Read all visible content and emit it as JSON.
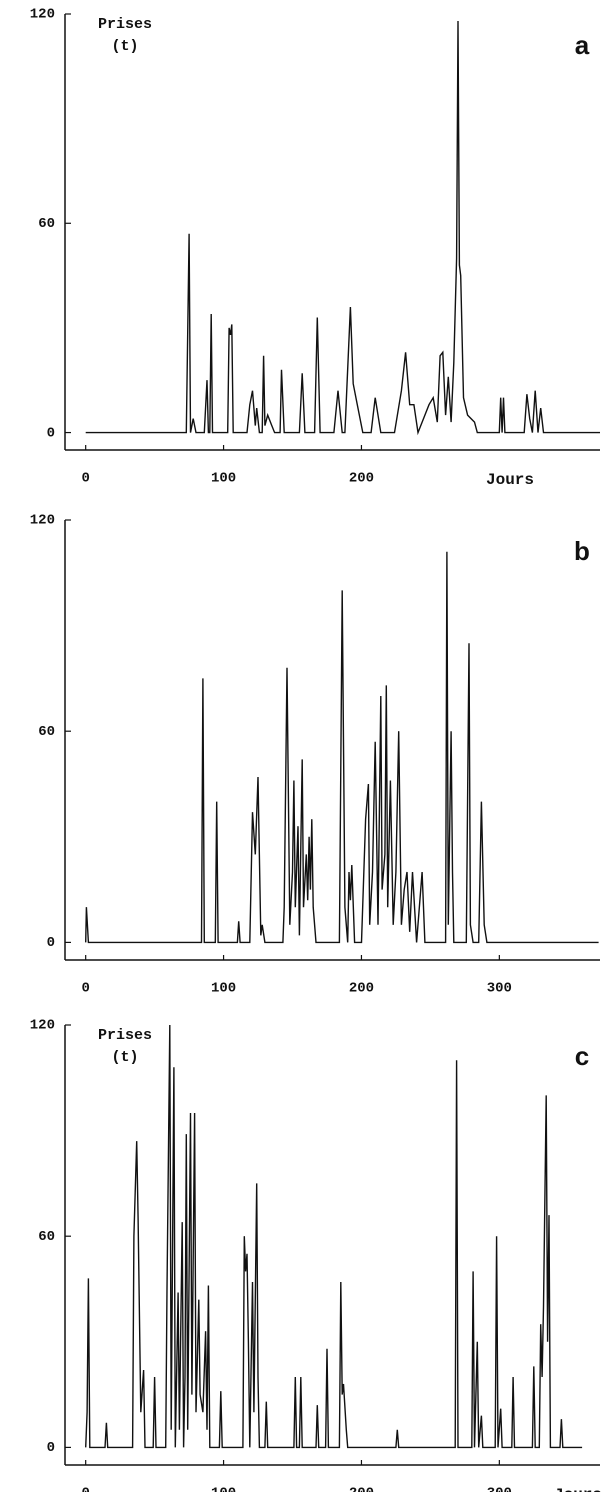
{
  "chart_data": [
    {
      "type": "line",
      "title": "a",
      "ylabel": [
        "Prises",
        "(t)"
      ],
      "xlabel": "Jours",
      "xlim": [
        -15,
        373
      ],
      "ylim": [
        -5,
        120
      ],
      "xticks": [
        0,
        100,
        200
      ],
      "yticks": [
        0,
        60,
        120
      ],
      "x": [
        0,
        73,
        75,
        76,
        78,
        80,
        86,
        88,
        89,
        90,
        91,
        92,
        103,
        104,
        105,
        106,
        107,
        117,
        119,
        121,
        123,
        124,
        126,
        128,
        129,
        130,
        132,
        135,
        137,
        141,
        142,
        144,
        155,
        157,
        159,
        166,
        168,
        170,
        180,
        183,
        186,
        188,
        192,
        194,
        197,
        201,
        207,
        210,
        214,
        224,
        229,
        232,
        235,
        238,
        241,
        246,
        249,
        252,
        255,
        257,
        259,
        261,
        263,
        265,
        267,
        269,
        270,
        271,
        272,
        274,
        277,
        282,
        284,
        300,
        301,
        302,
        303,
        304,
        318,
        320,
        322,
        324,
        326,
        328,
        330,
        332,
        373
      ],
      "series": [
        {
          "color": "#111111",
          "values": [
            0,
            0,
            57,
            0,
            4,
            0,
            0,
            15,
            0,
            0,
            34,
            0,
            0,
            30,
            28,
            31,
            0,
            0,
            8,
            12,
            2,
            7,
            0,
            0,
            22,
            2,
            5,
            2,
            0,
            0,
            18,
            0,
            0,
            17,
            0,
            0,
            33,
            0,
            0,
            12,
            0,
            0,
            36,
            14,
            8,
            0,
            0,
            10,
            0,
            0,
            12,
            23,
            8,
            8,
            0,
            5,
            8,
            10,
            3,
            22,
            23,
            5,
            16,
            3,
            20,
            50,
            118,
            48,
            45,
            10,
            5,
            3,
            0,
            0,
            10,
            0,
            10,
            0,
            0,
            11,
            4,
            0,
            12,
            0,
            7,
            0,
            0
          ]
        }
      ]
    },
    {
      "type": "line",
      "title": "b",
      "xlim": [
        -15,
        373
      ],
      "ylim": [
        -5,
        120
      ],
      "xticks": [
        0,
        100,
        200,
        300
      ],
      "yticks": [
        0,
        60,
        120
      ],
      "x": [
        0,
        0.5,
        2,
        84,
        85,
        86,
        94,
        95,
        96,
        110,
        111,
        112,
        119,
        121,
        123,
        125,
        127,
        128,
        130,
        143,
        144,
        146,
        148,
        150,
        151,
        152,
        154,
        155,
        157,
        158,
        160,
        161,
        162,
        163,
        164,
        165,
        167,
        184,
        186,
        188,
        190,
        191,
        192,
        193,
        195,
        200,
        203,
        205,
        206,
        208,
        210,
        212,
        214,
        215,
        217,
        218,
        219,
        221,
        223,
        225,
        227,
        229,
        231,
        233,
        235,
        237,
        240,
        244,
        246,
        261,
        262,
        263,
        265,
        266,
        267,
        276,
        278,
        279,
        281,
        285,
        287,
        289,
        291,
        372
      ],
      "series": [
        {
          "color": "#111111",
          "values": [
            0,
            10,
            0,
            0,
            75,
            0,
            0,
            40,
            0,
            0,
            6,
            0,
            0,
            37,
            25,
            47,
            2,
            5,
            0,
            0,
            10,
            78,
            5,
            20,
            46,
            10,
            33,
            2,
            52,
            10,
            25,
            12,
            30,
            15,
            35,
            10,
            0,
            0,
            100,
            10,
            0,
            20,
            12,
            22,
            0,
            0,
            35,
            45,
            5,
            20,
            57,
            5,
            70,
            15,
            25,
            73,
            10,
            46,
            5,
            20,
            60,
            5,
            15,
            20,
            3,
            20,
            0,
            20,
            0,
            0,
            111,
            5,
            60,
            20,
            0,
            0,
            85,
            5,
            0,
            0,
            40,
            5,
            0,
            0
          ]
        }
      ]
    },
    {
      "type": "line",
      "title": "c",
      "ylabel": [
        "Prises",
        "(t)"
      ],
      "xlabel": "Jours",
      "xlim": [
        -15,
        373
      ],
      "ylim": [
        -5,
        120
      ],
      "xticks": [
        0,
        100,
        200,
        300
      ],
      "yticks": [
        0,
        60,
        120
      ],
      "x": [
        0,
        1,
        2,
        3,
        14,
        15,
        16,
        34,
        35,
        37,
        38,
        40,
        42,
        43,
        49,
        50,
        51,
        58,
        59,
        61,
        62,
        64,
        65,
        67,
        68,
        70,
        71,
        72,
        73,
        74,
        76,
        77,
        79,
        80,
        82,
        83,
        85,
        87,
        88,
        89,
        90,
        97,
        98,
        99,
        114,
        115,
        116,
        117,
        118,
        119,
        121,
        122,
        124,
        125,
        126,
        130,
        131,
        132,
        151,
        152,
        153,
        155,
        156,
        157,
        167,
        168,
        169,
        174,
        175,
        176,
        184,
        185,
        186,
        187,
        189,
        190,
        225,
        226,
        227,
        268,
        269,
        270,
        280,
        281,
        282,
        284,
        285,
        287,
        288,
        297,
        298,
        299,
        301,
        302,
        309,
        310,
        311,
        324,
        325,
        326,
        329,
        330,
        331,
        332,
        334,
        335,
        336,
        337,
        344,
        345,
        346,
        360
      ],
      "series": [
        {
          "color": "#111111",
          "values": [
            0,
            10,
            48,
            0,
            0,
            7,
            0,
            0,
            60,
            87,
            65,
            10,
            22,
            0,
            0,
            20,
            0,
            0,
            45,
            120,
            5,
            108,
            0,
            44,
            5,
            64,
            0,
            20,
            89,
            5,
            95,
            15,
            95,
            10,
            42,
            15,
            10,
            33,
            5,
            46,
            0,
            0,
            16,
            0,
            0,
            60,
            50,
            55,
            30,
            0,
            47,
            10,
            75,
            20,
            0,
            0,
            13,
            0,
            0,
            20,
            0,
            0,
            20,
            0,
            0,
            12,
            0,
            0,
            28,
            0,
            0,
            47,
            15,
            18,
            5,
            0,
            0,
            5,
            0,
            0,
            110,
            0,
            0,
            50,
            0,
            30,
            0,
            9,
            0,
            0,
            60,
            0,
            11,
            0,
            0,
            20,
            0,
            0,
            23,
            0,
            0,
            35,
            20,
            40,
            100,
            30,
            66,
            0,
            0,
            8,
            0,
            0
          ]
        }
      ]
    }
  ]
}
